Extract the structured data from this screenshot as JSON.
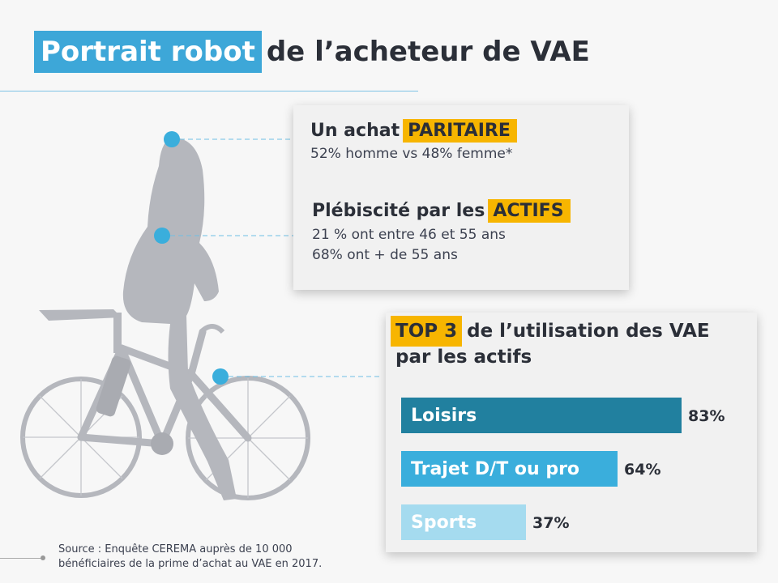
{
  "title": {
    "highlight": "Portrait robot",
    "rest": "de l’acheteur de VAE"
  },
  "card1": {
    "item1": {
      "heading": "Un achat",
      "tag": "PARITAIRE",
      "line1": "52% homme vs 48% femme*"
    },
    "item2": {
      "heading": "Plébiscité par les",
      "tag": "ACTIFS",
      "line1": "21 % ont entre 46 et 55 ans",
      "line2": "68% ont + de 55 ans"
    }
  },
  "card2": {
    "tag": "TOP 3",
    "heading_rest": "de l’utilisation des VAE",
    "heading_line2": "par les actifs"
  },
  "chart_data": {
    "type": "bar",
    "orientation": "horizontal",
    "categories": [
      "Loisirs",
      "Trajet D/T ou pro",
      "Sports"
    ],
    "values": [
      83,
      64,
      37
    ],
    "value_labels": [
      "83%",
      "64%",
      "37%"
    ],
    "colors": [
      "#21809f",
      "#3aaedc",
      "#a5dbef"
    ],
    "xlim": [
      0,
      100
    ]
  },
  "colors": {
    "title_highlight": "#3da7d8",
    "tag": "#f7b500",
    "dot": "#3aaedc",
    "silhouette": "#b5b7bd"
  },
  "source": {
    "line1": "Source : Enquête CEREMA auprès de 10 000",
    "line2": "bénéficiaires de la prime d’achat au VAE en 2017."
  }
}
